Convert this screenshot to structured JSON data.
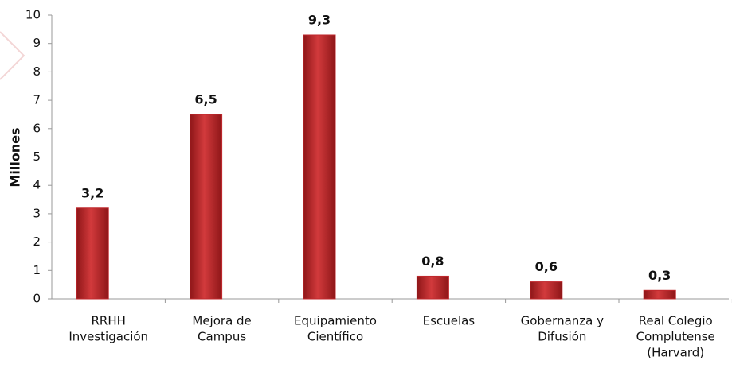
{
  "chart_data": {
    "type": "bar",
    "y_label": "Millones",
    "categories": [
      [
        "RRHH",
        "Investigación"
      ],
      [
        "Mejora de",
        "Campus"
      ],
      [
        "Equipamiento",
        "Científico"
      ],
      [
        "Escuelas"
      ],
      [
        "Gobernanza y",
        "Difusión"
      ],
      [
        "Real Colegio",
        "Complutense",
        "(Harvard)"
      ]
    ],
    "values": [
      3.2,
      6.5,
      9.3,
      0.8,
      0.6,
      0.3
    ],
    "value_labels": [
      "3,2",
      "6,5",
      "9,3",
      "0,8",
      "0,6",
      "0,3"
    ],
    "color": "#c0282d",
    "ylim": [
      0,
      10
    ],
    "yticks": [
      0,
      1,
      2,
      3,
      4,
      5,
      6,
      7,
      8,
      9,
      10
    ],
    "grid": false
  }
}
